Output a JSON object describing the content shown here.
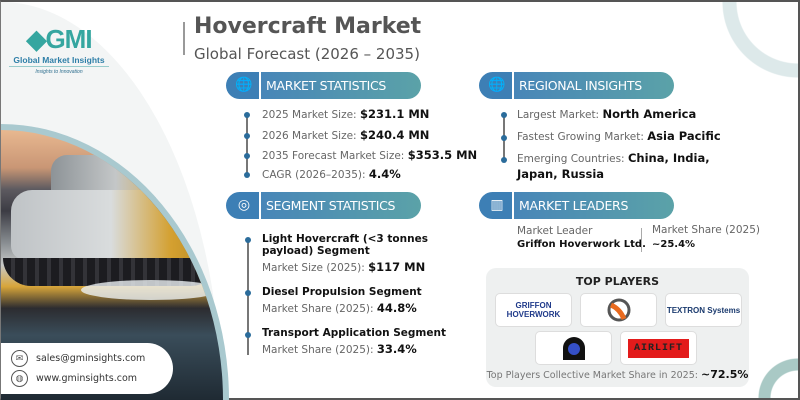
{
  "logo": {
    "mark": "GMI",
    "name": "Global Market Insights",
    "tagline": "Insights to Innovation"
  },
  "header": {
    "title": "Hovercraft Market",
    "subtitle": "Global Forecast (2026 – 2035)"
  },
  "market_statistics": {
    "label": "MARKET STATISTICS",
    "icon": "globe-chart-icon",
    "items": [
      {
        "label": "2025 Market Size:",
        "value": "$231.1 MN"
      },
      {
        "label": "2026 Market Size:",
        "value": "$240.4 MN"
      },
      {
        "label": "2035 Forecast Market Size:",
        "value": "$353.5 MN"
      },
      {
        "label": "CAGR (2026–2035):",
        "value": "4.4%"
      }
    ]
  },
  "segment_statistics": {
    "label": "SEGMENT STATISTICS",
    "icon": "target-icon",
    "items": [
      {
        "title": "Light Hovercraft (<3 tonnes payload) Segment",
        "label": "Market Size (2025):",
        "value": "$117 MN"
      },
      {
        "title": "Diesel Propulsion Segment",
        "label": "Market Share (2025):",
        "value": "44.8%"
      },
      {
        "title": "Transport Application Segment",
        "label": "Market Share (2025):",
        "value": "33.4%"
      }
    ]
  },
  "regional_insights": {
    "label": "REGIONAL INSIGHTS",
    "icon": "globe-icon",
    "items": [
      {
        "label": "Largest Market:",
        "value": "North America"
      },
      {
        "label": "Fastest Growing Market:",
        "value": "Asia Pacific"
      },
      {
        "label": "Emerging Countries:",
        "value": "China, India,",
        "value2": "Japan, Russia"
      }
    ]
  },
  "market_leaders": {
    "label": "MARKET LEADERS",
    "icon": "bar-chart-icon",
    "leader_label": "Market Leader",
    "leader": "Griffon Hoverwork Ltd.",
    "share_label": "Market Share (2025)",
    "share": "~25.4%"
  },
  "top_players": {
    "title": "TOP PLAYERS",
    "logos": [
      "GRIFFON HOVERWORK",
      "",
      "TEXTRON Systems",
      "",
      "AIRLIFT"
    ],
    "footer_label": "Top Players Collective Market Share in 2025:",
    "footer_value": "~72.5%"
  },
  "contact": {
    "email": "sales@gminsights.com",
    "website": "www.gminsights.com"
  },
  "colors": {
    "pill_start": "#3d7fb5",
    "pill_end": "#5ba2a8",
    "bullet": "#2b6c9b"
  }
}
